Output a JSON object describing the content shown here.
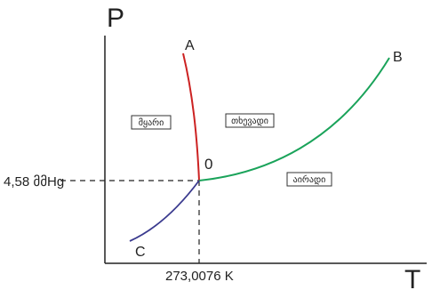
{
  "axes": {
    "y_label": "P",
    "x_label": "T"
  },
  "triple_point": {
    "label": "0",
    "pressure_label": "4,58 მმHg",
    "temperature_label": "273,0076 K"
  },
  "curves": [
    {
      "label": "A",
      "color": "#cc2222"
    },
    {
      "label": "B",
      "color": "#1aa35a"
    },
    {
      "label": "C",
      "color": "#3b3b8f"
    }
  ],
  "regions": {
    "left": "მყარი",
    "upper": "თხევადი",
    "right": "აირადი"
  }
}
